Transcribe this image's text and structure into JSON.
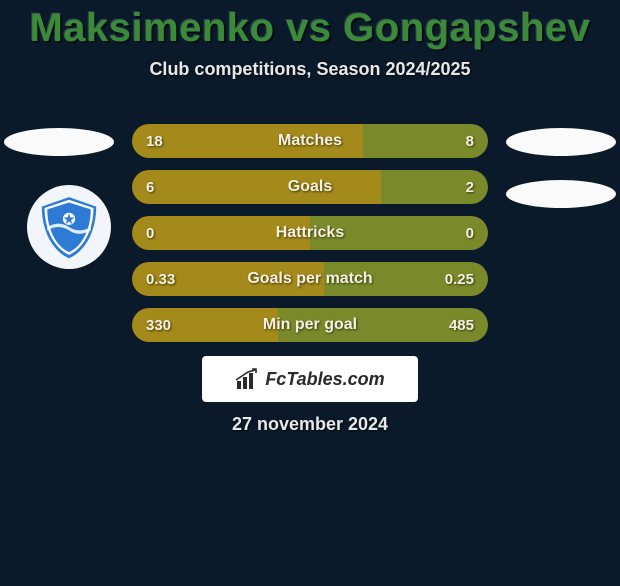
{
  "title": "Maksimenko vs Gongapshev",
  "subtitle": "Club competitions, Season 2024/2025",
  "date": "27 november 2024",
  "watermark": "FcTables.com",
  "colors": {
    "title": "#3a8a3a",
    "background": "#0a1a2a",
    "bar_left": "#a38a1a",
    "bar_right": "#7a8a2a",
    "bar_text": "#f5f0e0",
    "ellipse": "#fafafa",
    "watermark_bg": "#ffffff",
    "watermark_text": "#2a2a2a"
  },
  "bars": [
    {
      "label": "Matches",
      "left": "18",
      "right": "8",
      "left_pct": 65,
      "right_pct": 35
    },
    {
      "label": "Goals",
      "left": "6",
      "right": "2",
      "left_pct": 70,
      "right_pct": 30
    },
    {
      "label": "Hattricks",
      "left": "0",
      "right": "0",
      "left_pct": 50,
      "right_pct": 50
    },
    {
      "label": "Goals per match",
      "left": "0.33",
      "right": "0.25",
      "left_pct": 54,
      "right_pct": 46
    },
    {
      "label": "Min per goal",
      "left": "330",
      "right": "485",
      "left_pct": 41,
      "right_pct": 59
    }
  ]
}
